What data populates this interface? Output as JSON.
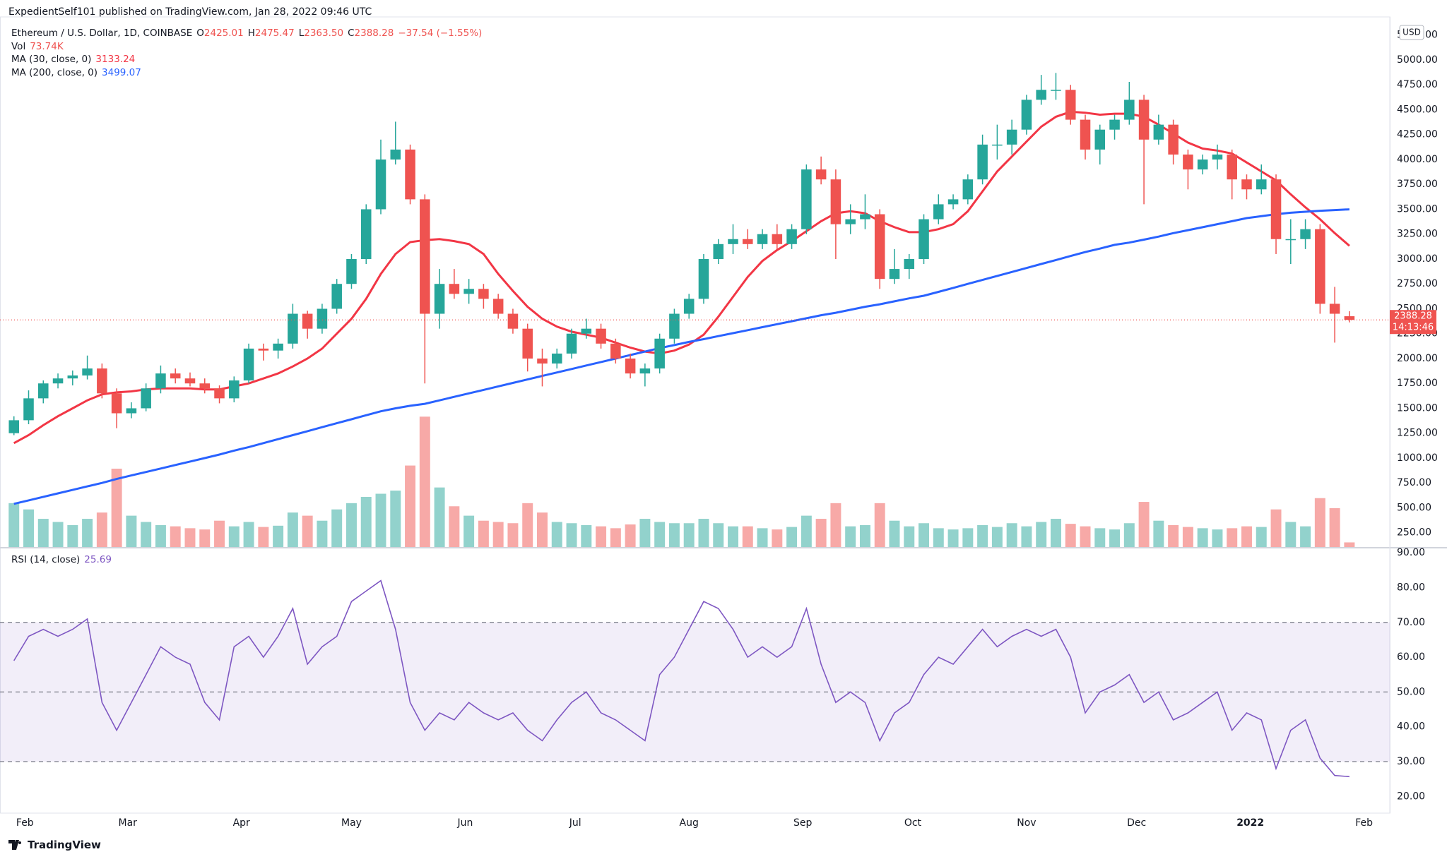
{
  "header": {
    "publisher": "ExpedientSelf101 published on TradingView.com, Jan 28, 2022 09:46 UTC"
  },
  "footer": {
    "brand": "TradingView"
  },
  "chart_data": {
    "type": "candlestick",
    "legend": {
      "symbol": "Ethereum / U.S. Dollar, 1D, COINBASE",
      "ohlc": [
        {
          "key": "O",
          "text": "2425.01"
        },
        {
          "key": "H",
          "text": "2475.47"
        },
        {
          "key": "L",
          "text": "2363.50"
        },
        {
          "key": "C",
          "text": "2388.28"
        }
      ],
      "change": "−37.54 (−1.55%)"
    },
    "currency": "USD",
    "countdown": "14:13:46",
    "up_color": "#26a69a",
    "down_color": "#ef5350",
    "xlim": [
      -0.45,
      94.25
    ],
    "xticks": [
      {
        "value": 1.25,
        "label": "Feb"
      },
      {
        "value": 8.25,
        "label": "Mar"
      },
      {
        "value": 16,
        "label": "Apr"
      },
      {
        "value": 23.5,
        "label": "May"
      },
      {
        "value": 31.25,
        "label": "Jun"
      },
      {
        "value": 38.75,
        "label": "Jul"
      },
      {
        "value": 46.5,
        "label": "Aug"
      },
      {
        "value": 54.25,
        "label": "Sep"
      },
      {
        "value": 61.75,
        "label": "Oct"
      },
      {
        "value": 69.5,
        "label": "Nov"
      },
      {
        "value": 77,
        "label": "Dec"
      },
      {
        "value": 84.75,
        "label": "2022"
      },
      {
        "value": 92.5,
        "label": "Feb"
      }
    ],
    "ylim": [
      106,
      5390
    ],
    "yticks": [
      {
        "value": 250,
        "label": "250.00"
      },
      {
        "value": 500,
        "label": "500.00"
      },
      {
        "value": 750,
        "label": "750.00"
      },
      {
        "value": 1000,
        "label": "1000.00"
      },
      {
        "value": 1250,
        "label": "1250.00"
      },
      {
        "value": 1500,
        "label": "1500.00"
      },
      {
        "value": 1750,
        "label": "1750.00"
      },
      {
        "value": 2000,
        "label": "2000.00"
      },
      {
        "value": 2250,
        "label": "2250.00"
      },
      {
        "value": 2500,
        "label": "2500.00"
      },
      {
        "value": 2750,
        "label": "2750.00"
      },
      {
        "value": 3000,
        "label": "3000.00"
      },
      {
        "value": 3250,
        "label": "3250.00"
      },
      {
        "value": 3500,
        "label": "3500.00"
      },
      {
        "value": 3750,
        "label": "3750.00"
      },
      {
        "value": 4000,
        "label": "4000.00"
      },
      {
        "value": 4250,
        "label": "4250.00"
      },
      {
        "value": 4500,
        "label": "4500.00"
      },
      {
        "value": 4750,
        "label": "4750.00"
      },
      {
        "value": 5000,
        "label": "5000.00"
      },
      {
        "value": 5250,
        "label": "5250.00"
      }
    ],
    "grid": false,
    "open": [
      1250,
      1380,
      1600,
      1750,
      1800,
      1830,
      1900,
      1650,
      1450,
      1500,
      1700,
      1850,
      1800,
      1750,
      1700,
      1600,
      1780,
      2100,
      2080,
      2150,
      2450,
      2300,
      2500,
      2750,
      3000,
      3500,
      4000,
      4100,
      3600,
      2450,
      2750,
      2650,
      2700,
      2600,
      2450,
      2300,
      2000,
      1950,
      2050,
      2250,
      2300,
      2150,
      2000,
      1850,
      1900,
      2200,
      2450,
      2600,
      3000,
      3150,
      3200,
      3150,
      3250,
      3150,
      3300,
      3900,
      3800,
      3350,
      3400,
      3450,
      2800,
      2900,
      3000,
      3400,
      3550,
      3600,
      3800,
      4150,
      4150,
      4300,
      4600,
      4700,
      4700,
      4400,
      4100,
      4300,
      4400,
      4600,
      4200,
      4350,
      4050,
      3900,
      4000,
      4050,
      3800,
      3700,
      3800,
      3200,
      3200,
      3300,
      2550,
      2425.01
    ],
    "high": [
      1420,
      1680,
      1780,
      1850,
      1880,
      2030,
      1950,
      1700,
      1560,
      1750,
      1930,
      1900,
      1860,
      1800,
      1730,
      1820,
      2150,
      2150,
      2200,
      2550,
      2480,
      2550,
      2800,
      3050,
      3550,
      4200,
      4380,
      4150,
      3650,
      2900,
      2900,
      2800,
      2750,
      2650,
      2500,
      2350,
      2100,
      2100,
      2300,
      2400,
      2350,
      2200,
      2050,
      1950,
      2250,
      2500,
      2650,
      3050,
      3200,
      3350,
      3300,
      3300,
      3350,
      3350,
      3950,
      4030,
      3900,
      3550,
      3650,
      3500,
      3100,
      3050,
      3450,
      3650,
      3650,
      3850,
      4250,
      4350,
      4400,
      4650,
      4850,
      4870,
      4750,
      4450,
      4350,
      4450,
      4780,
      4650,
      4450,
      4400,
      4100,
      4050,
      4150,
      4100,
      3850,
      3950,
      3850,
      3400,
      3400,
      3350,
      2720,
      2475.47
    ],
    "low": [
      1230,
      1340,
      1550,
      1700,
      1730,
      1790,
      1600,
      1300,
      1400,
      1470,
      1650,
      1750,
      1720,
      1650,
      1550,
      1560,
      1750,
      1980,
      2000,
      2100,
      2200,
      2250,
      2450,
      2700,
      2950,
      3450,
      3950,
      3550,
      1750,
      2300,
      2600,
      2550,
      2500,
      2400,
      2250,
      1870,
      1720,
      1900,
      2000,
      2200,
      2100,
      1950,
      1800,
      1720,
      1850,
      2150,
      2400,
      2550,
      2950,
      3050,
      3100,
      3100,
      3100,
      3100,
      3250,
      3750,
      3000,
      3250,
      3300,
      2700,
      2750,
      2800,
      2950,
      3350,
      3500,
      3550,
      3750,
      4000,
      4050,
      4250,
      4550,
      4600,
      4350,
      4000,
      3950,
      4200,
      4350,
      3550,
      4150,
      3950,
      3700,
      3850,
      3900,
      3600,
      3600,
      3650,
      3050,
      2950,
      3100,
      2450,
      2160,
      2363.5
    ],
    "close": [
      1380,
      1600,
      1750,
      1800,
      1830,
      1900,
      1650,
      1450,
      1500,
      1700,
      1850,
      1800,
      1750,
      1700,
      1600,
      1780,
      2100,
      2080,
      2150,
      2450,
      2300,
      2500,
      2750,
      3000,
      3500,
      4000,
      4100,
      3600,
      2450,
      2750,
      2650,
      2700,
      2600,
      2450,
      2300,
      2000,
      1950,
      2050,
      2250,
      2300,
      2150,
      2000,
      1850,
      1900,
      2200,
      2450,
      2600,
      3000,
      3150,
      3200,
      3150,
      3250,
      3150,
      3300,
      3900,
      3800,
      3350,
      3400,
      3450,
      2800,
      2900,
      3000,
      3400,
      3550,
      3600,
      3800,
      4150,
      4150,
      4300,
      4600,
      4700,
      4700,
      4400,
      4100,
      4300,
      4400,
      4600,
      4200,
      4350,
      4050,
      3900,
      4000,
      4050,
      3800,
      3700,
      3800,
      3200,
      3200,
      3300,
      2550,
      2450,
      2388.28
    ],
    "volume": {
      "name": "Vol",
      "label": "73.74K",
      "ylim": [
        0,
        2500
      ],
      "values": [
        700,
        600,
        450,
        400,
        350,
        450,
        550,
        1250,
        500,
        400,
        350,
        330,
        300,
        280,
        420,
        330,
        400,
        320,
        340,
        550,
        500,
        420,
        600,
        700,
        800,
        850,
        900,
        1300,
        2080,
        950,
        650,
        500,
        420,
        400,
        380,
        700,
        550,
        400,
        380,
        350,
        330,
        300,
        360,
        450,
        400,
        380,
        380,
        450,
        380,
        330,
        330,
        300,
        280,
        320,
        500,
        450,
        700,
        330,
        350,
        700,
        420,
        330,
        380,
        300,
        280,
        300,
        350,
        320,
        380,
        330,
        400,
        450,
        370,
        330,
        300,
        280,
        380,
        720,
        420,
        350,
        320,
        300,
        280,
        300,
        330,
        320,
        600,
        400,
        330,
        780,
        620,
        73.74
      ]
    },
    "series": [
      {
        "name": "MA (30, close, 0)",
        "color": "#f23645",
        "values": [
          1150,
          1230,
          1330,
          1420,
          1500,
          1580,
          1640,
          1660,
          1670,
          1690,
          1700,
          1700,
          1700,
          1690,
          1690,
          1720,
          1750,
          1800,
          1850,
          1920,
          2000,
          2100,
          2250,
          2400,
          2600,
          2850,
          3050,
          3170,
          3190,
          3200,
          3180,
          3150,
          3050,
          2850,
          2680,
          2520,
          2400,
          2320,
          2270,
          2240,
          2210,
          2160,
          2110,
          2070,
          2050,
          2080,
          2140,
          2240,
          2420,
          2620,
          2820,
          2980,
          3090,
          3180,
          3280,
          3380,
          3460,
          3480,
          3460,
          3380,
          3320,
          3270,
          3270,
          3300,
          3350,
          3480,
          3680,
          3880,
          4030,
          4180,
          4330,
          4430,
          4480,
          4470,
          4450,
          4460,
          4460,
          4430,
          4350,
          4260,
          4170,
          4110,
          4090,
          4060,
          3970,
          3880,
          3790,
          3650,
          3520,
          3400,
          3260,
          3133.24
        ]
      },
      {
        "name": "MA (200, close, 0)",
        "color": "#2962ff",
        "values": [
          540,
          575,
          610,
          645,
          680,
          715,
          750,
          790,
          825,
          860,
          895,
          930,
          965,
          1000,
          1035,
          1075,
          1110,
          1150,
          1190,
          1230,
          1270,
          1310,
          1350,
          1390,
          1430,
          1470,
          1500,
          1525,
          1545,
          1580,
          1615,
          1650,
          1685,
          1720,
          1755,
          1790,
          1825,
          1860,
          1895,
          1930,
          1965,
          2000,
          2035,
          2070,
          2105,
          2135,
          2167,
          2195,
          2225,
          2255,
          2285,
          2315,
          2345,
          2375,
          2405,
          2435,
          2460,
          2490,
          2520,
          2545,
          2575,
          2605,
          2631,
          2670,
          2710,
          2750,
          2790,
          2830,
          2870,
          2910,
          2950,
          2990,
          3030,
          3070,
          3105,
          3142,
          3165,
          3195,
          3225,
          3260,
          3290,
          3320,
          3350,
          3380,
          3411,
          3430,
          3450,
          3465,
          3475,
          3485,
          3492,
          3499.07
        ]
      }
    ],
    "rsi": {
      "name": "RSI (14, close)",
      "color": "#7e57c2",
      "ylim": [
        15.2,
        91.25
      ],
      "levels": [
        30,
        50,
        70
      ],
      "yticks": [
        {
          "value": 20,
          "label": "20.00"
        },
        {
          "value": 30,
          "label": "30.00"
        },
        {
          "value": 40,
          "label": "40.00"
        },
        {
          "value": 50,
          "label": "50.00"
        },
        {
          "value": 60,
          "label": "60.00"
        },
        {
          "value": 70,
          "label": "70.00"
        },
        {
          "value": 80,
          "label": "80.00"
        },
        {
          "value": 90,
          "label": "90.00"
        }
      ],
      "values": [
        59,
        66,
        68,
        66,
        68,
        71,
        47,
        39,
        47,
        55,
        63,
        60,
        58,
        47,
        42,
        63,
        66,
        60,
        66,
        74,
        58,
        63,
        66,
        76,
        79,
        82,
        68,
        47,
        39,
        44,
        42,
        47,
        44,
        42,
        44,
        39,
        36,
        42,
        47,
        50,
        44,
        42,
        39,
        36,
        55,
        60,
        68,
        76,
        74,
        68,
        60,
        63,
        60,
        63,
        74,
        58,
        47,
        50,
        47,
        36,
        44,
        47,
        55,
        60,
        58,
        63,
        68,
        63,
        66,
        68,
        66,
        68,
        60,
        44,
        50,
        52,
        55,
        47,
        50,
        42,
        44,
        47,
        50,
        39,
        44,
        42,
        28,
        39,
        42,
        31,
        26,
        25.69
      ]
    }
  }
}
